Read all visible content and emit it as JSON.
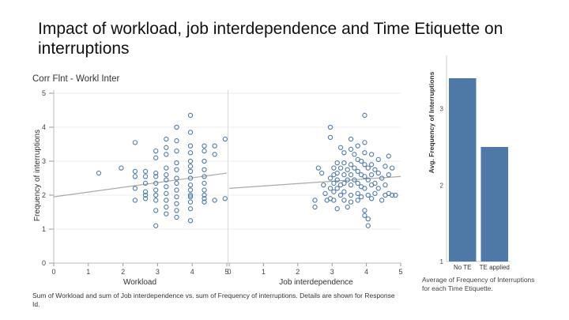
{
  "slide": {
    "title": "Impact of workload, job interdependence and Time Etiquette on interruptions"
  },
  "chart_data": [
    {
      "type": "scatter",
      "title": "Corr Flnt - Workl Inter",
      "ylabel": "Frequency of interruptions",
      "ylim": [
        0,
        5
      ],
      "yticks": [
        0,
        1,
        2,
        3,
        4,
        5
      ],
      "caption": "Sum of Workload and sum of Job interdependence vs. sum of Frequency of interruptions.  Details are shown for Response Id.",
      "panels": [
        {
          "xlabel": "Workload",
          "xlim": [
            0,
            5
          ],
          "xticks": [
            0,
            1,
            2,
            3,
            4,
            5
          ],
          "trend": {
            "x": [
              0,
              5
            ],
            "y": [
              1.95,
              2.65
            ]
          },
          "points": [
            [
              1.3,
              2.65
            ],
            [
              1.95,
              2.8
            ],
            [
              2.35,
              3.55
            ],
            [
              2.35,
              2.7
            ],
            [
              2.35,
              2.55
            ],
            [
              2.35,
              1.85
            ],
            [
              2.35,
              2.2
            ],
            [
              2.65,
              2.7
            ],
            [
              2.65,
              2.55
            ],
            [
              2.65,
              2.35
            ],
            [
              2.65,
              2.1
            ],
            [
              2.65,
              1.9
            ],
            [
              2.65,
              2.0
            ],
            [
              2.95,
              1.1
            ],
            [
              2.95,
              1.55
            ],
            [
              2.95,
              1.85
            ],
            [
              2.95,
              2.15
            ],
            [
              2.95,
              2.35
            ],
            [
              2.95,
              2.55
            ],
            [
              2.95,
              2.65
            ],
            [
              2.95,
              3.1
            ],
            [
              2.95,
              3.3
            ],
            [
              2.95,
              2.0
            ],
            [
              3.25,
              1.45
            ],
            [
              3.25,
              1.85
            ],
            [
              3.25,
              2.05
            ],
            [
              3.25,
              2.25
            ],
            [
              3.25,
              2.45
            ],
            [
              3.25,
              2.6
            ],
            [
              3.25,
              2.8
            ],
            [
              3.25,
              3.2
            ],
            [
              3.25,
              3.4
            ],
            [
              3.25,
              3.65
            ],
            [
              3.25,
              1.65
            ],
            [
              3.55,
              1.35
            ],
            [
              3.55,
              1.75
            ],
            [
              3.55,
              1.95
            ],
            [
              3.55,
              2.15
            ],
            [
              3.55,
              2.35
            ],
            [
              3.55,
              2.5
            ],
            [
              3.55,
              2.75
            ],
            [
              3.55,
              2.95
            ],
            [
              3.55,
              3.3
            ],
            [
              3.55,
              3.6
            ],
            [
              3.55,
              4.0
            ],
            [
              3.55,
              1.55
            ],
            [
              3.95,
              1.25
            ],
            [
              3.95,
              1.6
            ],
            [
              3.95,
              1.8
            ],
            [
              3.95,
              2.0
            ],
            [
              3.95,
              2.15
            ],
            [
              3.95,
              2.3
            ],
            [
              3.95,
              2.5
            ],
            [
              3.95,
              2.7
            ],
            [
              3.95,
              2.85
            ],
            [
              3.95,
              3.0
            ],
            [
              3.95,
              3.25
            ],
            [
              3.95,
              3.45
            ],
            [
              3.95,
              3.85
            ],
            [
              3.95,
              4.35
            ],
            [
              3.95,
              1.95
            ],
            [
              4.35,
              1.8
            ],
            [
              4.35,
              2.0
            ],
            [
              4.35,
              2.15
            ],
            [
              4.35,
              2.35
            ],
            [
              4.35,
              2.55
            ],
            [
              4.35,
              2.75
            ],
            [
              4.35,
              3.0
            ],
            [
              4.35,
              3.3
            ],
            [
              4.35,
              3.45
            ],
            [
              4.35,
              1.9
            ],
            [
              4.65,
              1.85
            ],
            [
              4.65,
              3.45
            ],
            [
              4.65,
              3.2
            ],
            [
              4.95,
              1.9
            ],
            [
              4.95,
              3.65
            ]
          ]
        },
        {
          "xlabel": "Job interdependence",
          "xlim": [
            0,
            5
          ],
          "xticks": [
            0,
            1,
            2,
            3,
            4,
            5
          ],
          "trend": {
            "x": [
              0,
              5
            ],
            "y": [
              2.2,
              2.55
            ]
          },
          "points": [
            [
              2.5,
              1.65
            ],
            [
              2.5,
              1.85
            ],
            [
              2.6,
              2.8
            ],
            [
              2.7,
              2.65
            ],
            [
              2.75,
              2.3
            ],
            [
              2.8,
              2.05
            ],
            [
              2.85,
              1.85
            ],
            [
              2.95,
              2.5
            ],
            [
              2.95,
              3.7
            ],
            [
              2.95,
              4.0
            ],
            [
              2.95,
              2.2
            ],
            [
              2.95,
              1.9
            ],
            [
              3.05,
              2.8
            ],
            [
              3.05,
              2.6
            ],
            [
              3.05,
              2.35
            ],
            [
              3.05,
              2.1
            ],
            [
              3.05,
              1.85
            ],
            [
              3.15,
              2.95
            ],
            [
              3.15,
              2.65
            ],
            [
              3.15,
              2.45
            ],
            [
              3.15,
              2.2
            ],
            [
              3.15,
              1.6
            ],
            [
              3.25,
              3.4
            ],
            [
              3.25,
              2.8
            ],
            [
              3.25,
              2.3
            ],
            [
              3.25,
              2.0
            ],
            [
              3.35,
              3.25
            ],
            [
              3.35,
              2.95
            ],
            [
              3.35,
              2.6
            ],
            [
              3.35,
              2.35
            ],
            [
              3.35,
              2.1
            ],
            [
              3.35,
              1.85
            ],
            [
              3.45,
              2.75
            ],
            [
              3.45,
              2.45
            ],
            [
              3.45,
              1.65
            ],
            [
              3.55,
              3.65
            ],
            [
              3.55,
              3.35
            ],
            [
              3.55,
              2.9
            ],
            [
              3.55,
              2.6
            ],
            [
              3.55,
              2.3
            ],
            [
              3.55,
              2.0
            ],
            [
              3.55,
              1.8
            ],
            [
              3.65,
              3.2
            ],
            [
              3.65,
              2.8
            ],
            [
              3.65,
              2.45
            ],
            [
              3.75,
              3.45
            ],
            [
              3.75,
              3.05
            ],
            [
              3.75,
              2.7
            ],
            [
              3.75,
              2.35
            ],
            [
              3.75,
              2.05
            ],
            [
              3.75,
              1.85
            ],
            [
              3.85,
              3.0
            ],
            [
              3.85,
              2.6
            ],
            [
              3.85,
              2.25
            ],
            [
              3.85,
              1.95
            ],
            [
              3.95,
              4.35
            ],
            [
              3.95,
              3.55
            ],
            [
              3.95,
              3.25
            ],
            [
              3.95,
              2.9
            ],
            [
              3.95,
              2.55
            ],
            [
              3.95,
              2.2
            ],
            [
              3.95,
              1.55
            ],
            [
              3.95,
              1.4
            ],
            [
              4.05,
              2.8
            ],
            [
              4.05,
              2.45
            ],
            [
              4.05,
              2.0
            ],
            [
              4.05,
              1.3
            ],
            [
              4.05,
              1.1
            ],
            [
              4.15,
              3.2
            ],
            [
              4.15,
              2.9
            ],
            [
              4.15,
              2.6
            ],
            [
              4.15,
              2.3
            ],
            [
              4.15,
              1.9
            ],
            [
              4.25,
              2.75
            ],
            [
              4.25,
              2.35
            ],
            [
              4.25,
              2.05
            ],
            [
              4.35,
              3.05
            ],
            [
              4.35,
              2.65
            ],
            [
              4.35,
              2.2
            ],
            [
              4.45,
              2.5
            ],
            [
              4.45,
              1.85
            ],
            [
              4.55,
              2.85
            ],
            [
              4.55,
              2.3
            ],
            [
              4.55,
              2.0
            ],
            [
              4.65,
              3.15
            ],
            [
              4.65,
              2.6
            ],
            [
              4.65,
              2.05
            ],
            [
              4.75,
              2.8
            ],
            [
              4.75,
              2.0
            ],
            [
              4.85,
              2.0
            ]
          ]
        }
      ]
    },
    {
      "type": "bar",
      "ylabel": "Avg. Frequency of Interruptions",
      "categories": [
        "No TE",
        "TE applied"
      ],
      "values": [
        3.4,
        2.5
      ],
      "ylim": [
        1,
        3.7
      ],
      "yticks": [
        1,
        2,
        3
      ],
      "bar_color": "#4e79a7",
      "caption": "Average of Frequency of Interruptions for each Time Etiquette."
    }
  ]
}
